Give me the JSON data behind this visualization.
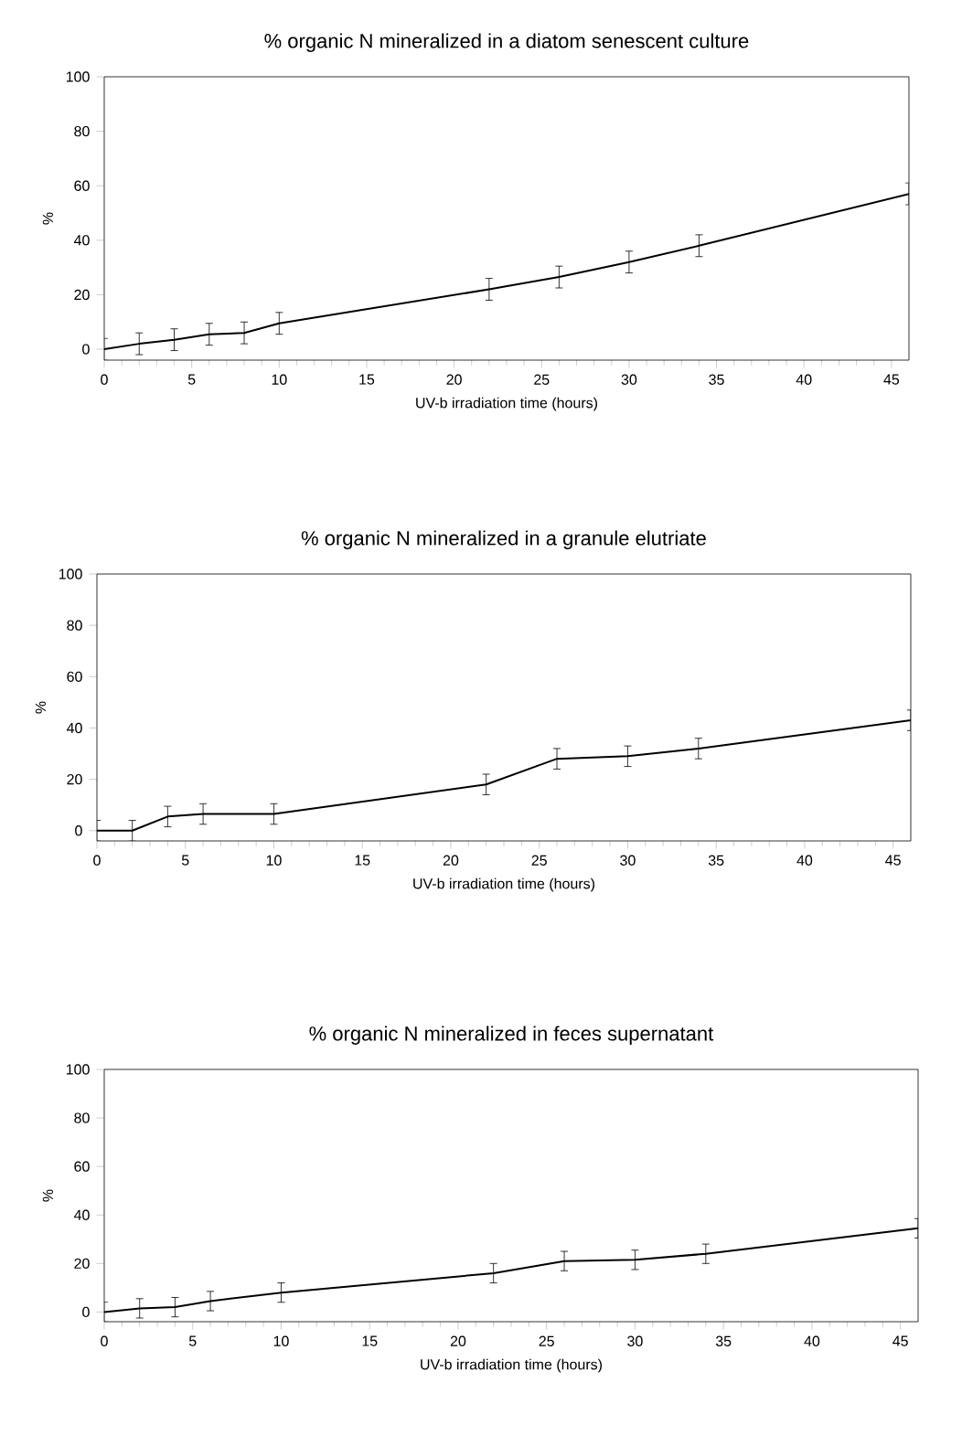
{
  "chart_data": [
    {
      "type": "line",
      "title": "% organic N mineralized in a diatom senescent culture",
      "xlabel": "UV-b irradiation time (hours)",
      "ylabel": "%",
      "color": "#000000",
      "marker": "none",
      "line_style": "solid",
      "x": [
        0,
        2,
        4,
        6,
        8,
        10,
        22,
        26,
        30,
        34,
        46
      ],
      "values": [
        0,
        2,
        3.5,
        5.5,
        6,
        9.5,
        22,
        26.5,
        32,
        38,
        57
      ],
      "errors": [
        4,
        4,
        4,
        4,
        4,
        4,
        4,
        4,
        4,
        4,
        4
      ],
      "xlim": [
        0,
        46
      ],
      "ylim": [
        -4,
        100
      ],
      "xticks": [
        0,
        5,
        10,
        15,
        20,
        25,
        30,
        35,
        40,
        45
      ],
      "yticks": [
        0,
        20,
        40,
        60,
        80,
        100
      ]
    },
    {
      "type": "line",
      "title": "% organic N mineralized in a granule elutriate",
      "xlabel": "UV-b irradiation time (hours)",
      "ylabel": "%",
      "color": "#000000",
      "marker": "none",
      "line_style": "solid",
      "x": [
        0,
        2,
        4,
        6,
        10,
        22,
        26,
        30,
        34,
        46
      ],
      "values": [
        0,
        0,
        5.5,
        6.5,
        6.5,
        18,
        28,
        29,
        32,
        43
      ],
      "errors": [
        4,
        4,
        4,
        4,
        4,
        4,
        4,
        4,
        4,
        4
      ],
      "xlim": [
        0,
        46
      ],
      "ylim": [
        -4,
        100
      ],
      "xticks": [
        0,
        5,
        10,
        15,
        20,
        25,
        30,
        35,
        40,
        45
      ],
      "yticks": [
        0,
        20,
        40,
        60,
        80,
        100
      ]
    },
    {
      "type": "line",
      "title": "% organic N mineralized in feces supernatant",
      "xlabel": "UV-b irradiation time (hours)",
      "ylabel": "%",
      "color": "#000000",
      "marker": "none",
      "line_style": "solid",
      "x": [
        0,
        2,
        4,
        6,
        10,
        22,
        26,
        30,
        34,
        46
      ],
      "values": [
        0,
        1.5,
        2,
        4.5,
        8,
        16,
        21,
        21.5,
        24,
        34.5
      ],
      "errors": [
        4,
        4,
        4,
        4,
        4,
        4,
        4,
        4,
        4,
        4
      ],
      "xlim": [
        0,
        46
      ],
      "ylim": [
        -4,
        100
      ],
      "xticks": [
        0,
        5,
        10,
        15,
        20,
        25,
        30,
        35,
        40,
        45
      ],
      "yticks": [
        0,
        20,
        40,
        60,
        80,
        100
      ]
    }
  ]
}
